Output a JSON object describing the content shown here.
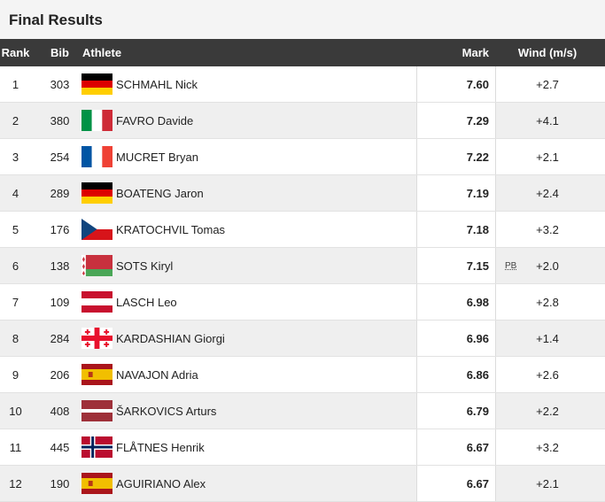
{
  "header": {
    "title": "Final Results"
  },
  "table": {
    "columns": [
      "Rank",
      "Bib",
      "Athlete",
      "Mark",
      "Wind (m/s)"
    ],
    "rows": [
      {
        "rank": "1",
        "bib": "303",
        "athlete": "SCHMAHL Nick",
        "mark": "7.60",
        "wind": "+2.7"
      },
      {
        "rank": "2",
        "bib": "380",
        "athlete": "FAVRO Davide",
        "mark": "7.29",
        "wind": "+4.1"
      },
      {
        "rank": "3",
        "bib": "254",
        "athlete": "MUCRET Bryan",
        "mark": "7.22",
        "wind": "+2.1"
      },
      {
        "rank": "4",
        "bib": "289",
        "athlete": "BOATENG Jaron",
        "mark": "7.19",
        "wind": "+2.4"
      },
      {
        "rank": "5",
        "bib": "176",
        "athlete": "KRATOCHVIL Tomas",
        "mark": "7.18",
        "wind": "+3.2"
      },
      {
        "rank": "6",
        "bib": "138",
        "athlete": "SOTS Kiryl",
        "mark": "7.15",
        "note": "PB",
        "wind": "+2.0"
      },
      {
        "rank": "7",
        "bib": "109",
        "athlete": "LASCH Leo",
        "mark": "6.98",
        "wind": "+2.8"
      },
      {
        "rank": "8",
        "bib": "284",
        "athlete": "KARDASHIAN Giorgi",
        "mark": "6.96",
        "wind": "+1.4"
      },
      {
        "rank": "9",
        "bib": "206",
        "athlete": "NAVAJON Adria",
        "mark": "6.86",
        "wind": "+2.6"
      },
      {
        "rank": "10",
        "bib": "408",
        "athlete": "ŠARKOVICS Arturs",
        "mark": "6.79",
        "wind": "+2.2"
      },
      {
        "rank": "11",
        "bib": "445",
        "athlete": "FLÅTNES Henrik",
        "mark": "6.67",
        "wind": "+3.2"
      },
      {
        "rank": "12",
        "bib": "190",
        "athlete": "AGUIRIANO Alex",
        "mark": "6.67",
        "wind": "+2.1"
      }
    ]
  }
}
